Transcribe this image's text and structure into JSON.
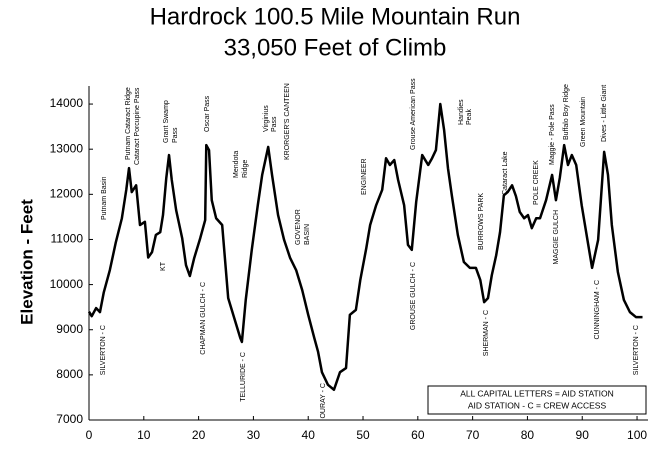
{
  "chart_data": {
    "type": "line",
    "title": "Hardrock 100.5 Mile Mountain Run",
    "subtitle": "33,050 Feet of Climb",
    "y_label": "Elevation - Feet",
    "xlim": [
      0,
      102
    ],
    "ylim": [
      7000,
      14400
    ],
    "xticks": [
      0,
      10,
      20,
      30,
      40,
      50,
      60,
      70,
      80,
      90,
      100
    ],
    "yticks": [
      7000,
      8000,
      9000,
      10000,
      11000,
      12000,
      13000,
      14000
    ],
    "grid": false,
    "x": [
      0,
      0.5,
      1.3,
      2,
      2.7,
      3.8,
      4.9,
      6.0,
      6.8,
      7.3,
      7.8,
      8.6,
      9.3,
      10.2,
      10.8,
      11.5,
      12.2,
      13.0,
      13.5,
      14.1,
      14.6,
      15.1,
      15.9,
      17.0,
      17.7,
      18.4,
      19.2,
      20.3,
      21.2,
      21.4,
      21.9,
      22.4,
      23.2,
      24.3,
      25.4,
      26.5,
      27.6,
      27.9,
      28.6,
      29.7,
      30.8,
      31.6,
      32.7,
      33.4,
      34.5,
      35.6,
      36.7,
      37.8,
      38.9,
      40.0,
      41.1,
      41.8,
      42.5,
      43.6,
      44.7,
      45.8,
      46.9,
      47.6,
      48.7,
      49.5,
      50.6,
      51.3,
      52.4,
      53.5,
      54.2,
      54.9,
      55.7,
      56.4,
      57.5,
      58.2,
      58.9,
      59.7,
      60.8,
      61.9,
      62.6,
      63.3,
      64.1,
      64.8,
      65.5,
      66.2,
      67.3,
      68.4,
      69.5,
      70.6,
      71.4,
      72.1,
      72.8,
      73.5,
      74.3,
      75.0,
      75.7,
      76.4,
      77.2,
      77.9,
      78.6,
      79.4,
      80.1,
      80.8,
      81.6,
      82.3,
      83.4,
      84.5,
      85.2,
      85.9,
      86.7,
      87.4,
      88.1,
      88.9,
      89.9,
      91.1,
      91.8,
      92.9,
      94.0,
      94.7,
      95.4,
      96.5,
      97.6,
      98.7,
      99.8,
      101
    ],
    "series": [
      {
        "name": "Elevation",
        "color": "#000000",
        "values": [
          9400,
          9300,
          9480,
          9390,
          9830,
          10320,
          10940,
          11470,
          12100,
          12580,
          12050,
          12200,
          11320,
          11390,
          10600,
          10720,
          11100,
          11160,
          11540,
          12360,
          12870,
          12320,
          11650,
          11030,
          10430,
          10190,
          10590,
          11030,
          11430,
          13090,
          12980,
          11870,
          11470,
          11320,
          9700,
          9260,
          8820,
          8730,
          9660,
          10770,
          11760,
          12430,
          13050,
          12430,
          11540,
          10990,
          10590,
          10320,
          9880,
          9330,
          8820,
          8510,
          8060,
          7780,
          7670,
          8060,
          8150,
          9330,
          9440,
          10100,
          10810,
          11320,
          11760,
          12100,
          12800,
          12650,
          12760,
          12320,
          11760,
          10880,
          10770,
          11830,
          12870,
          12650,
          12800,
          12980,
          14000,
          13420,
          12580,
          11980,
          11100,
          10500,
          10370,
          10370,
          10100,
          9610,
          9700,
          10210,
          10650,
          11160,
          11980,
          12050,
          12200,
          11960,
          11610,
          11470,
          11540,
          11250,
          11470,
          11470,
          11870,
          12430,
          11870,
          12360,
          13090,
          12650,
          12870,
          12650,
          11760,
          10880,
          10370,
          10990,
          12940,
          12430,
          11320,
          10280,
          9660,
          9390,
          9280,
          9280
        ]
      }
    ],
    "annotations": [
      "SILVERTON - C",
      "Putnam Basin",
      "Putnam Cataract Ridge",
      "Cataract Porcupine Pass",
      "KT",
      "Grant Swamp",
      "Pass",
      "Oscar Pass",
      "CHAPMAN GULCH - C",
      "Mendota",
      "Ridge",
      "TELLURIDE - C",
      "Virginius",
      "Pass",
      "KRORGER'S CANTEEN",
      "GOVENOR",
      "BASIN",
      "OURAY - C",
      "ENGINEER",
      "GROUSE GULCH - C",
      "Grouse American Pass",
      "Handies",
      "Peak",
      "BURROWS PARK",
      "SHERMAN - C",
      "Cataract Lake",
      "POLE CREEK",
      "Maggie - Pole Pass",
      "MAGGIE GULCH",
      "Buffalo Boy Ridge",
      "Green Mountain",
      "Dives - Little Giant",
      "CUNNINGHAM - C",
      "SILVERTON - C"
    ],
    "legend_notes": [
      "ALL CAPITAL LETTERS = AID STATION",
      "AID STATION - C = CREW ACCESS"
    ]
  }
}
